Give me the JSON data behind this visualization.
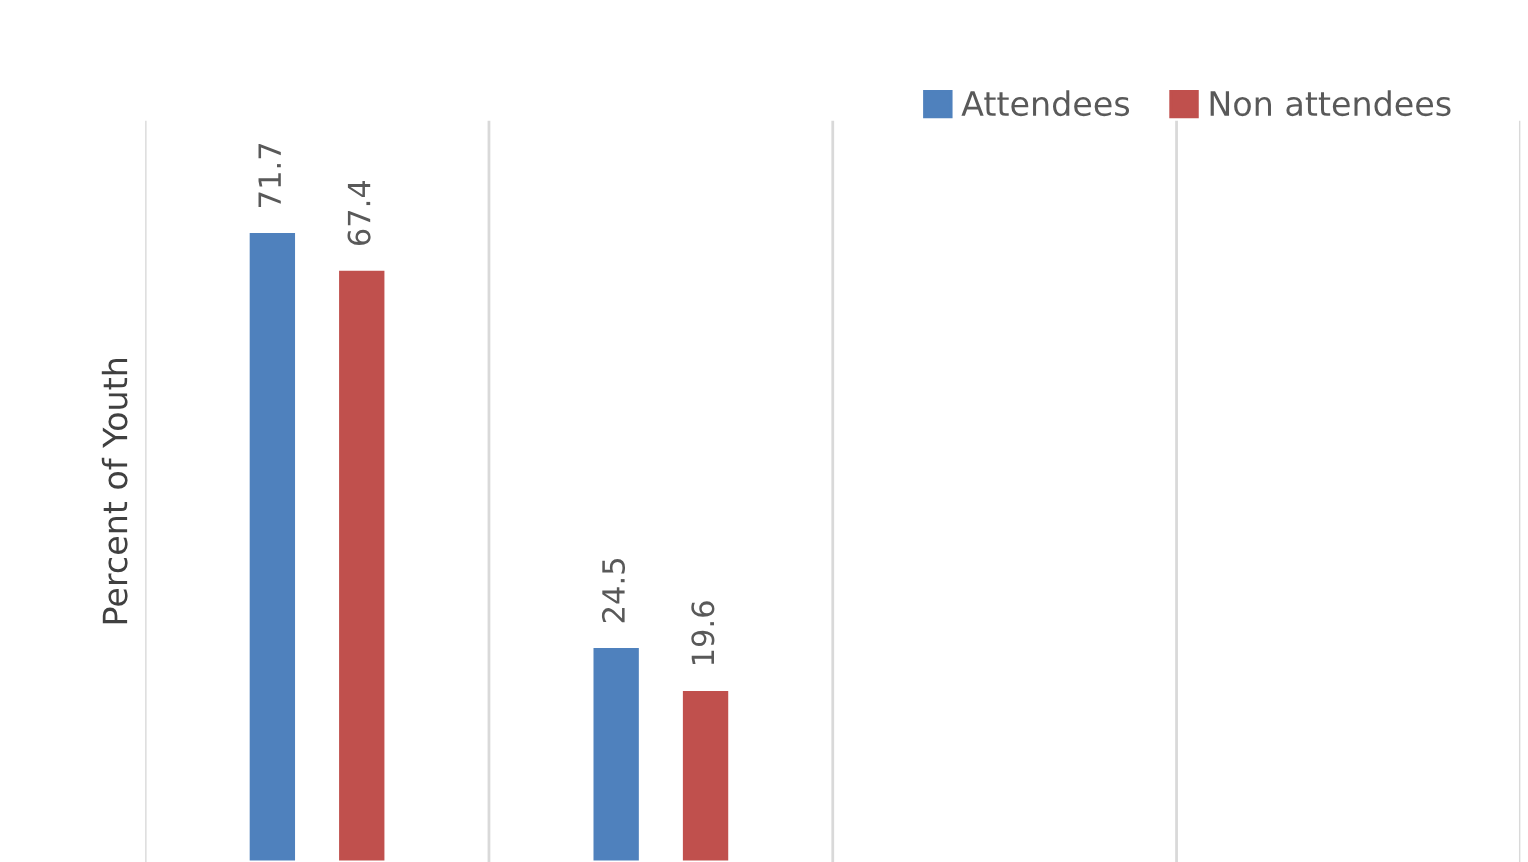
{
  "chart_data": {
    "type": "bar",
    "ylabel": "Percent of Youth",
    "categories": [
      null,
      null
    ],
    "series": [
      {
        "name": "Attendees",
        "color": "#4f81bd",
        "values": [
          71.7,
          24.5
        ]
      },
      {
        "name": "Non attendees",
        "color": "#c0504d",
        "values": [
          67.4,
          19.6
        ]
      }
    ],
    "data_labels": true,
    "grid": "x",
    "legend": "top right"
  }
}
